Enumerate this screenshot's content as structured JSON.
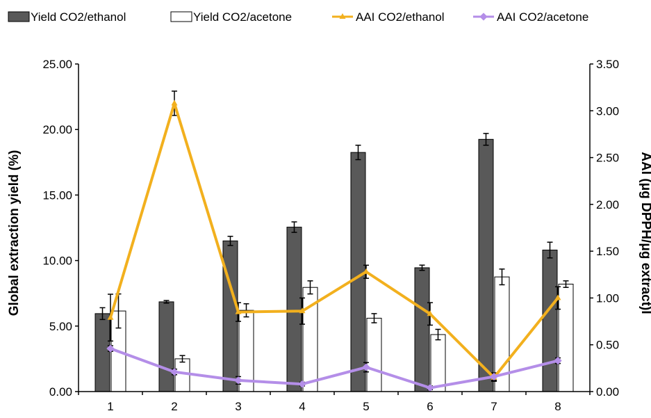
{
  "chart_data": {
    "type": "bar",
    "categories": [
      "1",
      "2",
      "3",
      "4",
      "5",
      "6",
      "7",
      "8"
    ],
    "series": [
      {
        "name": "Yield CO2/ethanol",
        "kind": "bar",
        "axis": "left",
        "color": "#595959",
        "values": [
          5.95,
          6.85,
          11.5,
          12.55,
          18.25,
          9.45,
          19.25,
          10.8
        ],
        "errors": [
          0.45,
          0.1,
          0.35,
          0.4,
          0.55,
          0.2,
          0.45,
          0.6
        ]
      },
      {
        "name": "Yield CO2/acetone",
        "kind": "bar",
        "axis": "left",
        "color": "#ffffff",
        "values": [
          6.15,
          2.5,
          6.2,
          7.95,
          5.6,
          4.35,
          8.75,
          8.2
        ],
        "errors": [
          1.3,
          0.25,
          0.5,
          0.5,
          0.35,
          0.4,
          0.6,
          0.25
        ]
      },
      {
        "name": "AAI CO2/ethanol",
        "kind": "line",
        "axis": "right",
        "color": "#f2b01e",
        "values": [
          0.79,
          3.08,
          0.85,
          0.86,
          1.28,
          0.83,
          0.15,
          1.0
        ],
        "errors": [
          0.25,
          0.13,
          0.1,
          0.14,
          0.07,
          0.12,
          0.04,
          0.12
        ]
      },
      {
        "name": "AAI CO2/acetone",
        "kind": "line",
        "axis": "right",
        "color": "#b48ee8",
        "values": [
          0.46,
          0.21,
          0.12,
          0.08,
          0.26,
          0.04,
          0.16,
          0.33
        ],
        "errors": [
          0.03,
          0.03,
          0.04,
          0.02,
          0.05,
          0.02,
          0.04,
          0.03
        ]
      }
    ],
    "ylabel": "Global extraction yield (%)",
    "y2label": "AAI (μg DPPH/μg extract)I",
    "ylim": [
      0,
      25
    ],
    "y2lim": [
      0,
      3.5
    ],
    "yticks": [
      "0.00",
      "5.00",
      "10.00",
      "15.00",
      "20.00",
      "25.00"
    ],
    "y2ticks": [
      "0.00",
      "0.50",
      "1.00",
      "1.50",
      "2.00",
      "2.50",
      "3.00",
      "3.50"
    ],
    "legend_position": "top",
    "grid": false
  }
}
